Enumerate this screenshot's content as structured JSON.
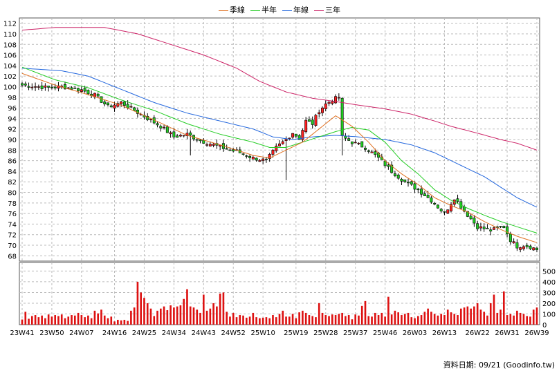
{
  "legend": [
    {
      "name": "季線",
      "color": "#e07020"
    },
    {
      "name": "半年",
      "color": "#22cc22"
    },
    {
      "name": "年線",
      "color": "#2266dd"
    },
    {
      "name": "三年",
      "color": "#cc2266"
    }
  ],
  "footer": {
    "date": "資料日期: 09/21",
    "site": "(Goodinfo.tw)"
  },
  "chart_data": {
    "type": "candlestick",
    "price_axis": {
      "min": 67,
      "max": 113,
      "ticks": [
        68,
        70,
        72,
        74,
        76,
        78,
        80,
        82,
        84,
        86,
        88,
        90,
        92,
        94,
        96,
        98,
        100,
        102,
        104,
        106,
        108,
        110,
        112
      ]
    },
    "volume_axis": {
      "min": 0,
      "max": 580,
      "ticks": [
        0,
        100,
        200,
        300,
        400,
        500
      ]
    },
    "grid": true,
    "x_labels": [
      "23W41",
      "23W50",
      "24W07",
      "24W16",
      "24W25",
      "24W34",
      "24W43",
      "24W52",
      "25W10",
      "25W19",
      "25W28",
      "25W37",
      "25W46",
      "26W03",
      "26W13",
      "26W22",
      "26W31",
      "26W39"
    ],
    "weeks": 157,
    "price_anchors": [
      [
        0,
        100.3
      ],
      [
        8,
        99.8
      ],
      [
        12,
        100.0
      ],
      [
        18,
        99.4
      ],
      [
        22,
        98.4
      ],
      [
        26,
        96.2
      ],
      [
        30,
        97.0
      ],
      [
        34,
        95.5
      ],
      [
        38,
        94.0
      ],
      [
        42,
        92.5
      ],
      [
        46,
        90.5
      ],
      [
        50,
        91.0
      ],
      [
        54,
        89.8
      ],
      [
        58,
        89.0
      ],
      [
        62,
        88.2
      ],
      [
        66,
        87.5
      ],
      [
        70,
        86.5
      ],
      [
        74,
        86.0
      ],
      [
        77,
        88.5
      ],
      [
        80,
        90.0
      ],
      [
        82,
        91.3
      ],
      [
        84,
        90.2
      ],
      [
        86,
        93.5
      ],
      [
        88,
        93.0
      ],
      [
        90,
        95.5
      ],
      [
        92,
        96.7
      ],
      [
        94,
        97.5
      ],
      [
        96,
        98.0
      ],
      [
        97,
        90.5
      ],
      [
        100,
        89.5
      ],
      [
        104,
        88.5
      ],
      [
        108,
        86.5
      ],
      [
        112,
        84.0
      ],
      [
        116,
        82.0
      ],
      [
        120,
        80.5
      ],
      [
        124,
        78.5
      ],
      [
        128,
        76.0
      ],
      [
        131,
        79.0
      ],
      [
        134,
        76.5
      ],
      [
        138,
        73.5
      ],
      [
        142,
        72.8
      ],
      [
        146,
        73.5
      ],
      [
        148,
        71.0
      ],
      [
        150,
        69.8
      ],
      [
        152,
        70.0
      ],
      [
        154,
        69.7
      ],
      [
        156,
        69.2
      ]
    ],
    "ma_quarter": [
      [
        0,
        102.5
      ],
      [
        10,
        100.3
      ],
      [
        20,
        98.5
      ],
      [
        30,
        96.5
      ],
      [
        40,
        93.7
      ],
      [
        50,
        90.8
      ],
      [
        60,
        89.0
      ],
      [
        70,
        87.0
      ],
      [
        75,
        86.5
      ],
      [
        80,
        88.0
      ],
      [
        85,
        89.5
      ],
      [
        90,
        92.0
      ],
      [
        95,
        94.5
      ],
      [
        100,
        92.5
      ],
      [
        105,
        89.5
      ],
      [
        110,
        86.0
      ],
      [
        115,
        83.5
      ],
      [
        120,
        81.5
      ],
      [
        125,
        79.0
      ],
      [
        130,
        77.5
      ],
      [
        135,
        76.3
      ],
      [
        140,
        74.5
      ],
      [
        145,
        73.0
      ],
      [
        150,
        71.7
      ],
      [
        156,
        70.5
      ]
    ],
    "ma_half": [
      [
        0,
        103.7
      ],
      [
        10,
        101.3
      ],
      [
        20,
        99.8
      ],
      [
        30,
        97.5
      ],
      [
        40,
        95.5
      ],
      [
        50,
        93.0
      ],
      [
        60,
        91.0
      ],
      [
        70,
        89.5
      ],
      [
        75,
        88.5
      ],
      [
        80,
        88.5
      ],
      [
        85,
        89.5
      ],
      [
        90,
        90.5
      ],
      [
        95,
        91.5
      ],
      [
        100,
        92.3
      ],
      [
        105,
        91.8
      ],
      [
        110,
        89.5
      ],
      [
        115,
        86.0
      ],
      [
        120,
        83.5
      ],
      [
        125,
        80.5
      ],
      [
        130,
        78.5
      ],
      [
        135,
        77.0
      ],
      [
        140,
        75.7
      ],
      [
        145,
        74.5
      ],
      [
        150,
        73.5
      ],
      [
        156,
        72.3
      ]
    ],
    "ma_year": [
      [
        0,
        103.5
      ],
      [
        12,
        103.0
      ],
      [
        20,
        102.0
      ],
      [
        30,
        99.5
      ],
      [
        40,
        97.0
      ],
      [
        50,
        95.0
      ],
      [
        60,
        93.5
      ],
      [
        70,
        92.0
      ],
      [
        76,
        90.5
      ],
      [
        82,
        90.0
      ],
      [
        88,
        90.5
      ],
      [
        95,
        90.8
      ],
      [
        102,
        90.5
      ],
      [
        110,
        90.0
      ],
      [
        118,
        89.0
      ],
      [
        125,
        87.5
      ],
      [
        130,
        86.0
      ],
      [
        135,
        84.5
      ],
      [
        140,
        83.0
      ],
      [
        145,
        81.0
      ],
      [
        150,
        79.0
      ],
      [
        156,
        77.2
      ]
    ],
    "ma_3year": [
      [
        0,
        110.7
      ],
      [
        10,
        111.2
      ],
      [
        25,
        111.2
      ],
      [
        35,
        110.0
      ],
      [
        45,
        108.0
      ],
      [
        55,
        106.0
      ],
      [
        65,
        103.5
      ],
      [
        72,
        101.0
      ],
      [
        80,
        99.0
      ],
      [
        88,
        97.8
      ],
      [
        95,
        97.2
      ],
      [
        102,
        96.5
      ],
      [
        110,
        95.8
      ],
      [
        118,
        94.8
      ],
      [
        125,
        93.5
      ],
      [
        130,
        92.5
      ],
      [
        138,
        91.2
      ],
      [
        145,
        90.0
      ],
      [
        150,
        89.3
      ],
      [
        156,
        88.0
      ]
    ],
    "volumes": [
      48,
      120,
      55,
      80,
      90,
      70,
      85,
      60,
      95,
      75,
      90,
      80,
      95,
      60,
      75,
      90,
      85,
      110,
      90,
      70,
      85,
      60,
      130,
      105,
      140,
      85,
      60,
      75,
      30,
      45,
      40,
      45,
      35,
      130,
      160,
      400,
      300,
      250,
      200,
      150,
      80,
      130,
      150,
      170,
      135,
      180,
      160,
      170,
      180,
      240,
      330,
      170,
      160,
      140,
      110,
      280,
      130,
      150,
      200,
      170,
      290,
      300,
      120,
      75,
      110,
      70,
      90,
      85,
      65,
      75,
      110,
      70,
      60,
      65,
      70,
      60,
      90,
      70,
      100,
      130,
      75,
      75,
      100,
      60,
      115,
      130,
      110,
      90,
      80,
      70,
      200,
      110,
      90,
      80,
      95,
      90,
      100,
      110,
      80,
      90,
      50,
      95,
      85,
      175,
      220,
      80,
      75,
      110,
      90,
      110,
      75,
      260,
      95,
      130,
      115,
      90,
      100,
      110,
      70,
      60,
      80,
      90,
      120,
      150,
      120,
      100,
      85,
      100,
      90,
      140,
      115,
      100,
      90,
      150,
      160,
      170,
      150,
      170,
      200,
      140,
      120,
      85,
      200,
      280,
      110,
      140,
      310,
      90,
      100,
      85,
      130,
      110,
      100,
      80,
      75,
      140,
      160
    ]
  }
}
